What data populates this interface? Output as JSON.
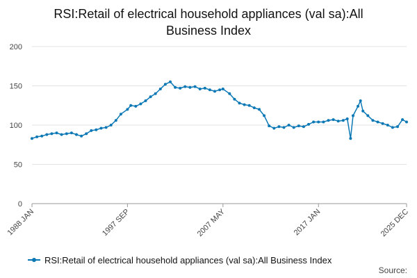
{
  "chart_data": {
    "type": "line",
    "title_line1": "RSI:Retail of electrical household appliances (val sa):All",
    "title_line2": "Business Index",
    "xlabel": "",
    "ylabel": "",
    "ylim": [
      0,
      200
    ],
    "y_ticks": [
      "0",
      "50",
      "100",
      "150",
      "200"
    ],
    "x_ticks": [
      "1988 JAN",
      "1997 SEP",
      "2007 MAY",
      "2017 JAN",
      "2025 DEC"
    ],
    "grid": true,
    "legend_position": "bottom-left",
    "series": [
      {
        "name": "RSI:Retail of electrical household appliances (val sa):All Business Index",
        "color": "#0b78b6",
        "x": [
          "1988 JAN",
          "1988 JUL",
          "1989 JAN",
          "1989 JUL",
          "1990 JAN",
          "1990 JUL",
          "1991 JAN",
          "1991 JUL",
          "1992 JAN",
          "1992 JUL",
          "1993 JAN",
          "1993 JUL",
          "1994 JAN",
          "1994 JUL",
          "1995 JAN",
          "1995 JUL",
          "1996 JAN",
          "1996 JUL",
          "1997 JAN",
          "1997 SEP",
          "1998 JAN",
          "1998 JUL",
          "1999 JAN",
          "1999 JUL",
          "2000 JAN",
          "2000 JUL",
          "2001 JAN",
          "2001 JUL",
          "2002 JAN",
          "2002 JUL",
          "2003 JAN",
          "2003 JUL",
          "2004 JAN",
          "2004 JUL",
          "2005 JAN",
          "2005 JUL",
          "2006 JAN",
          "2006 JUL",
          "2007 JAN",
          "2007 MAY",
          "2008 JAN",
          "2008 JUL",
          "2009 JAN",
          "2009 JUL",
          "2010 JAN",
          "2010 JUL",
          "2011 JAN",
          "2011 JUL",
          "2012 JAN",
          "2012 JUL",
          "2013 JAN",
          "2013 JUL",
          "2014 JAN",
          "2014 JUL",
          "2015 JAN",
          "2015 JUL",
          "2016 JAN",
          "2016 JUL",
          "2017 JAN",
          "2017 JUL",
          "2018 JAN",
          "2018 JUL",
          "2019 JAN",
          "2019 JUL",
          "2019 DEC",
          "2020 APR",
          "2020 JUL",
          "2021 JAN",
          "2021 APR",
          "2021 JUL",
          "2022 JAN",
          "2022 JUL",
          "2023 JAN",
          "2023 JUL",
          "2024 JAN",
          "2024 JUL",
          "2025 JAN",
          "2025 JUL",
          "2025 DEC"
        ],
        "values": [
          83,
          85,
          86,
          88,
          89,
          90,
          88,
          89,
          90,
          88,
          86,
          89,
          93,
          94,
          96,
          97,
          100,
          106,
          114,
          120,
          125,
          124,
          127,
          131,
          136,
          140,
          146,
          152,
          155,
          148,
          147,
          149,
          148,
          149,
          146,
          147,
          145,
          143,
          145,
          146,
          140,
          133,
          128,
          126,
          125,
          122,
          120,
          112,
          99,
          96,
          98,
          97,
          100,
          97,
          99,
          98,
          101,
          104,
          104,
          104,
          106,
          107,
          105,
          106,
          108,
          83,
          112,
          124,
          131,
          118,
          112,
          106,
          104,
          102,
          100,
          97,
          98,
          107,
          104
        ]
      }
    ]
  },
  "legend": {
    "label": "RSI:Retail of electrical household appliances (val sa):All Business Index"
  },
  "source": {
    "label": "Source:"
  }
}
